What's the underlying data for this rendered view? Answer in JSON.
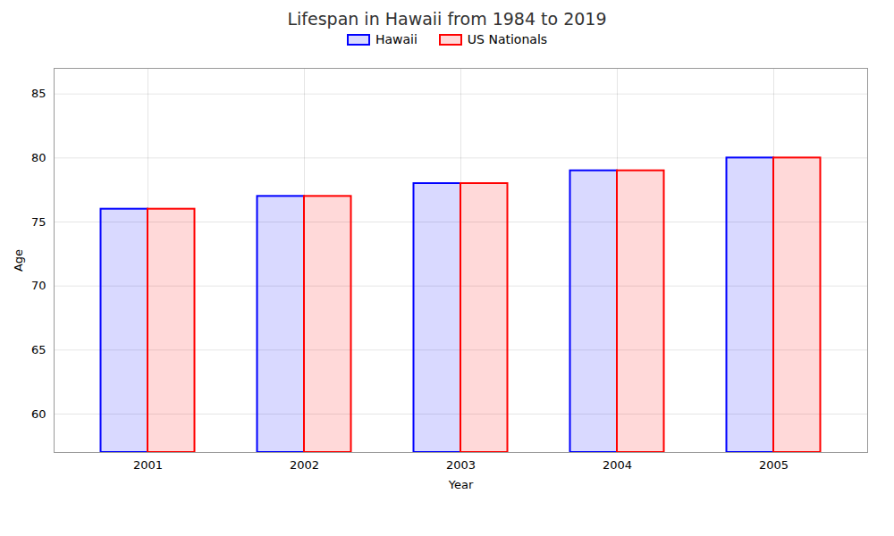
{
  "chart_data": {
    "type": "bar",
    "title": "Lifespan in Hawaii from 1984 to 2019",
    "xlabel": "Year",
    "ylabel": "Age",
    "categories": [
      "2001",
      "2002",
      "2003",
      "2004",
      "2005"
    ],
    "series": [
      {
        "name": "Hawaii",
        "color": "#0000ff",
        "values": [
          76,
          77,
          78,
          79,
          80
        ]
      },
      {
        "name": "US Nationals",
        "color": "#ff0000",
        "values": [
          76,
          77,
          78,
          79,
          80
        ]
      }
    ],
    "ylim": [
      57,
      87
    ],
    "yticks": [
      60,
      65,
      70,
      75,
      80,
      85
    ],
    "grid": true,
    "legend": "top"
  }
}
